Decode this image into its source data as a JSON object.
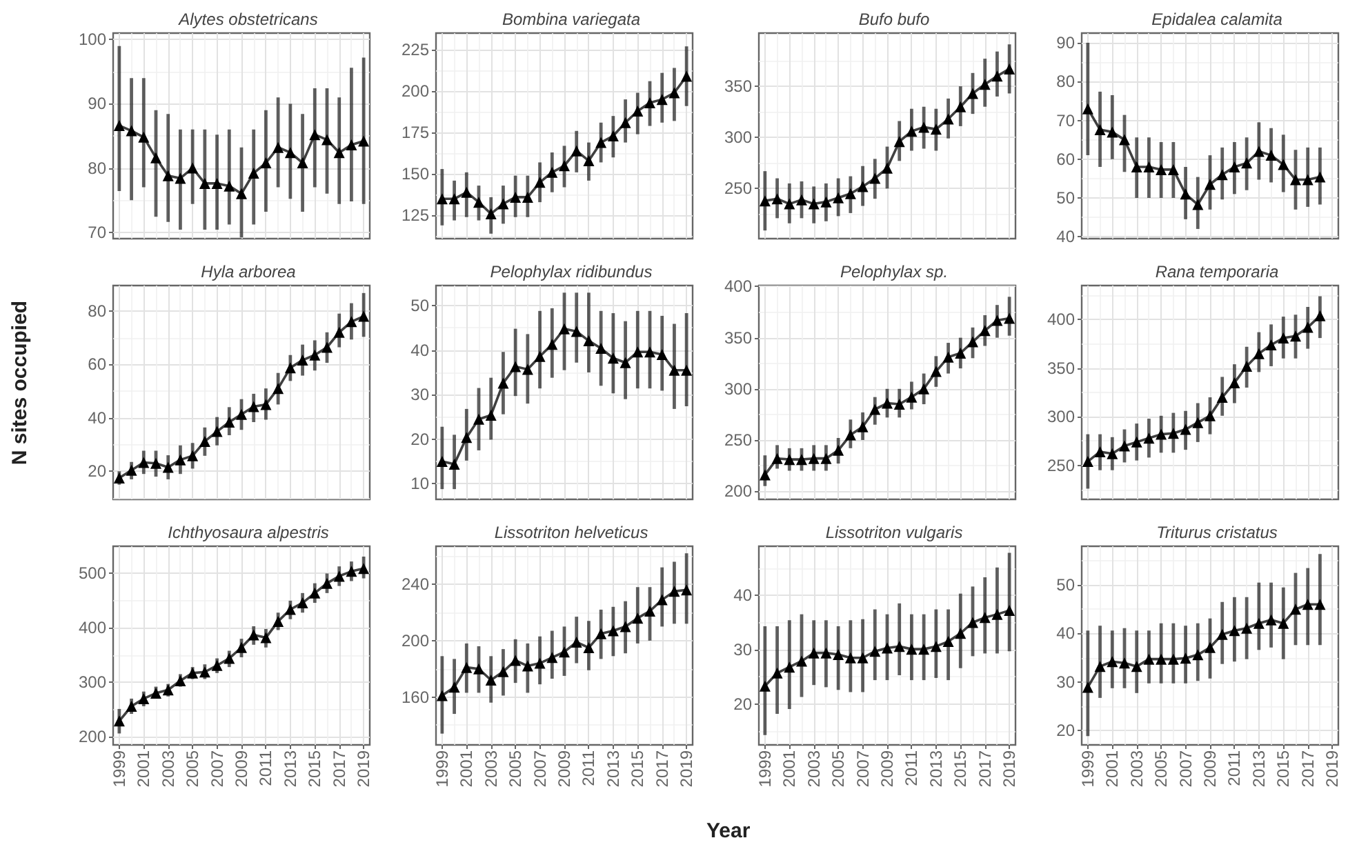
{
  "chart_data": [
    {
      "type": "line",
      "title": "Alytes obstetricans",
      "color": "#000000",
      "marker": "triangle",
      "line_style": "solid",
      "grid": true,
      "tick_labels": "y",
      "xlim": [
        1998.5,
        2019.5
      ],
      "xticks": [
        1999,
        2001,
        2003,
        2005,
        2007,
        2009,
        2011,
        2013,
        2015,
        2017,
        2019
      ],
      "ylim": [
        69,
        101
      ],
      "yticks": [
        70,
        80,
        90,
        100
      ],
      "x": [
        1999,
        2000,
        2001,
        2002,
        2003,
        2004,
        2005,
        2006,
        2007,
        2008,
        2009,
        2010,
        2011,
        2012,
        2013,
        2014,
        2015,
        2016,
        2017,
        2018,
        2019
      ],
      "values": [
        86.6,
        85.8,
        84.8,
        81.6,
        78.8,
        78.4,
        80,
        77.6,
        77.6,
        77.2,
        76,
        79.2,
        80.8,
        83.2,
        82.4,
        80.8,
        85.2,
        84.4,
        82.4,
        83.6,
        84.2
      ],
      "errors": [
        [
          76.4,
          99
        ],
        [
          75,
          94
        ],
        [
          77,
          94
        ],
        [
          72.4,
          89
        ],
        [
          71.6,
          88.4
        ],
        [
          70.4,
          86
        ],
        [
          74.4,
          86
        ],
        [
          70.4,
          86
        ],
        [
          70.4,
          85.2
        ],
        [
          71.2,
          86
        ],
        [
          69.2,
          83.2
        ],
        [
          71.2,
          86
        ],
        [
          73.2,
          89
        ],
        [
          77,
          91
        ],
        [
          75.2,
          90
        ],
        [
          73.2,
          88.4
        ],
        [
          77,
          92.4
        ],
        [
          76,
          92.4
        ],
        [
          74.4,
          91
        ],
        [
          74.8,
          95.6
        ],
        [
          74.4,
          97.2
        ]
      ]
    },
    {
      "type": "line",
      "title": "Bombina variegata",
      "color": "#000000",
      "marker": "triangle",
      "line_style": "solid",
      "grid": true,
      "tick_labels": "y",
      "xlim": [
        1998.5,
        2019.5
      ],
      "xticks": [
        1999,
        2001,
        2003,
        2005,
        2007,
        2009,
        2011,
        2013,
        2015,
        2017,
        2019
      ],
      "ylim": [
        111,
        235
      ],
      "yticks": [
        125,
        150,
        175,
        200,
        225
      ],
      "x": [
        1999,
        2000,
        2001,
        2002,
        2003,
        2004,
        2005,
        2006,
        2007,
        2008,
        2009,
        2010,
        2011,
        2012,
        2013,
        2014,
        2015,
        2016,
        2017,
        2018,
        2019
      ],
      "values": [
        135,
        135,
        139,
        133,
        126,
        132,
        136,
        136,
        145,
        151,
        155,
        164,
        158,
        169,
        173,
        181,
        188,
        193,
        195,
        199,
        209
      ],
      "errors": [
        [
          119,
          153
        ],
        [
          122,
          146
        ],
        [
          124,
          151
        ],
        [
          122,
          143
        ],
        [
          114,
          136
        ],
        [
          120,
          143
        ],
        [
          124,
          149
        ],
        [
          124,
          149
        ],
        [
          133,
          157
        ],
        [
          139,
          163
        ],
        [
          142,
          167
        ],
        [
          151,
          176
        ],
        [
          146,
          169
        ],
        [
          157,
          181
        ],
        [
          160,
          185
        ],
        [
          169,
          195
        ],
        [
          174,
          199
        ],
        [
          179,
          206
        ],
        [
          181,
          211
        ],
        [
          182,
          214
        ],
        [
          191,
          227
        ]
      ]
    },
    {
      "type": "line",
      "title": "Bufo bufo",
      "color": "#000000",
      "marker": "triangle",
      "line_style": "solid",
      "grid": true,
      "tick_labels": "y",
      "xlim": [
        1998.5,
        2019.5
      ],
      "xticks": [
        1999,
        2001,
        2003,
        2005,
        2007,
        2009,
        2011,
        2013,
        2015,
        2017,
        2019
      ],
      "ylim": [
        201,
        402
      ],
      "yticks": [
        250,
        300,
        350
      ],
      "x": [
        1999,
        2000,
        2001,
        2002,
        2003,
        2004,
        2005,
        2006,
        2007,
        2008,
        2009,
        2010,
        2011,
        2012,
        2013,
        2014,
        2015,
        2016,
        2017,
        2018,
        2019
      ],
      "values": [
        238,
        240,
        235,
        239,
        235,
        237,
        241,
        245,
        252,
        260,
        270,
        296,
        306,
        310,
        308,
        318,
        330,
        343,
        352,
        360,
        367
      ],
      "errors": [
        [
          209,
          267
        ],
        [
          221,
          260
        ],
        [
          216,
          255
        ],
        [
          221,
          257
        ],
        [
          216,
          252
        ],
        [
          218,
          255
        ],
        [
          223,
          260
        ],
        [
          226,
          262
        ],
        [
          233,
          272
        ],
        [
          240,
          279
        ],
        [
          250,
          291
        ],
        [
          277,
          316
        ],
        [
          287,
          328
        ],
        [
          289,
          330
        ],
        [
          287,
          328
        ],
        [
          299,
          338
        ],
        [
          311,
          350
        ],
        [
          323,
          363
        ],
        [
          330,
          377
        ],
        [
          340,
          384
        ],
        [
          343,
          391
        ]
      ]
    },
    {
      "type": "line",
      "title": "Epidalea calamita",
      "color": "#000000",
      "marker": "triangle",
      "line_style": "solid",
      "grid": true,
      "tick_labels": "y",
      "xlim": [
        1998.5,
        2019.5
      ],
      "xticks": [
        1999,
        2001,
        2003,
        2005,
        2007,
        2009,
        2011,
        2013,
        2015,
        2017,
        2019
      ],
      "ylim": [
        39.5,
        92.5
      ],
      "yticks": [
        40,
        50,
        60,
        70,
        80,
        90
      ],
      "x": [
        1999,
        2000,
        2001,
        2002,
        2003,
        2004,
        2005,
        2006,
        2007,
        2008,
        2009,
        2010,
        2011,
        2012,
        2013,
        2014,
        2015,
        2016,
        2017,
        2018
      ],
      "values": [
        73,
        67.6,
        67,
        65,
        58,
        58,
        57.3,
        57.3,
        51,
        48.3,
        53.5,
        56,
        58,
        59,
        62,
        61,
        58.6,
        54.7,
        54.7,
        55.4
      ],
      "errors": [
        [
          61,
          90
        ],
        [
          58,
          77.4
        ],
        [
          60,
          76.5
        ],
        [
          56.7,
          71.4
        ],
        [
          50,
          65.6
        ],
        [
          50,
          65.6
        ],
        [
          50,
          64.4
        ],
        [
          50,
          64.4
        ],
        [
          44.5,
          58
        ],
        [
          42,
          55.4
        ],
        [
          47,
          61
        ],
        [
          49.6,
          63
        ],
        [
          51,
          64.4
        ],
        [
          52,
          65.6
        ],
        [
          54.7,
          69.5
        ],
        [
          54,
          68
        ],
        [
          51.5,
          66.3
        ],
        [
          47,
          62.4
        ],
        [
          47.7,
          63
        ],
        [
          48.3,
          63
        ]
      ]
    },
    {
      "type": "line",
      "title": "Hyla arborea",
      "ylabel": "N sites occupied",
      "color": "#000000",
      "marker": "triangle",
      "line_style": "solid",
      "grid": true,
      "tick_labels": "y",
      "xlim": [
        1998.5,
        2019.5
      ],
      "xticks": [
        1999,
        2001,
        2003,
        2005,
        2007,
        2009,
        2011,
        2013,
        2015,
        2017,
        2019
      ],
      "ylim": [
        9.5,
        89.5
      ],
      "yticks": [
        20,
        40,
        60,
        80
      ],
      "x": [
        1999,
        2000,
        2001,
        2002,
        2003,
        2004,
        2005,
        2006,
        2007,
        2008,
        2009,
        2010,
        2011,
        2012,
        2013,
        2014,
        2015,
        2016,
        2017,
        2018,
        2019
      ],
      "values": [
        17.5,
        20.4,
        23.3,
        23,
        21.5,
        24.3,
        25.8,
        31.2,
        34.9,
        38.4,
        41.3,
        44.2,
        45,
        51,
        58.7,
        61.6,
        63.5,
        66.4,
        72,
        76,
        78
      ],
      "errors": [
        [
          15,
          20
        ],
        [
          17,
          23.5
        ],
        [
          19,
          27.7
        ],
        [
          18,
          27.7
        ],
        [
          17,
          26
        ],
        [
          19,
          29.7
        ],
        [
          21,
          30.6
        ],
        [
          25.8,
          36.4
        ],
        [
          29.7,
          40.3
        ],
        [
          33.5,
          44
        ],
        [
          35.5,
          47
        ],
        [
          38.4,
          49
        ],
        [
          39.3,
          51
        ],
        [
          45,
          56.8
        ],
        [
          53.8,
          63.5
        ],
        [
          55.8,
          67.4
        ],
        [
          57.7,
          69
        ],
        [
          60.6,
          72
        ],
        [
          66.4,
          79
        ],
        [
          69.3,
          82.9
        ],
        [
          70.3,
          86.7
        ]
      ]
    },
    {
      "type": "line",
      "title": "Pelophylax ridibundus",
      "color": "#000000",
      "marker": "triangle",
      "line_style": "solid",
      "grid": true,
      "tick_labels": "y",
      "xlim": [
        1998.5,
        2019.5
      ],
      "xticks": [
        1999,
        2001,
        2003,
        2005,
        2007,
        2009,
        2011,
        2013,
        2015,
        2017,
        2019
      ],
      "ylim": [
        6.5,
        54.5
      ],
      "yticks": [
        10,
        20,
        30,
        40,
        50
      ],
      "x": [
        1999,
        2000,
        2001,
        2002,
        2003,
        2004,
        2005,
        2006,
        2007,
        2008,
        2009,
        2010,
        2011,
        2012,
        2013,
        2014,
        2015,
        2016,
        2017,
        2018,
        2019
      ],
      "values": [
        15,
        14.4,
        20.4,
        24.5,
        25.4,
        32.6,
        36.3,
        35.7,
        38.6,
        41.3,
        44.8,
        44.2,
        42.1,
        40.4,
        38.2,
        37.2,
        39.6,
        39.6,
        39,
        35.5,
        35.5
      ],
      "errors": [
        [
          8.8,
          22.8
        ],
        [
          8.8,
          21
        ],
        [
          15.2,
          26.8
        ],
        [
          17.5,
          31.5
        ],
        [
          19.9,
          33.8
        ],
        [
          25.6,
          39.6
        ],
        [
          29.7,
          44.8
        ],
        [
          28,
          43.6
        ],
        [
          31.4,
          48.8
        ],
        [
          33.8,
          49.4
        ],
        [
          35.5,
          52.9
        ],
        [
          37.2,
          52.9
        ],
        [
          35,
          52.9
        ],
        [
          32,
          48.8
        ],
        [
          30.3,
          48.3
        ],
        [
          29,
          46.5
        ],
        [
          31.4,
          48.8
        ],
        [
          31.4,
          48.8
        ],
        [
          30.9,
          47.7
        ],
        [
          26.8,
          45.9
        ],
        [
          27.4,
          48.3
        ]
      ]
    },
    {
      "type": "line",
      "title": "Pelophylax sp.",
      "color": "#000000",
      "marker": "triangle",
      "line_style": "solid",
      "grid": true,
      "tick_labels": "y",
      "xlim": [
        1998.5,
        2019.5
      ],
      "xticks": [
        1999,
        2001,
        2003,
        2005,
        2007,
        2009,
        2011,
        2013,
        2015,
        2017,
        2019
      ],
      "ylim": [
        192,
        401
      ],
      "yticks": [
        200,
        250,
        300,
        350,
        400
      ],
      "x": [
        1999,
        2000,
        2001,
        2002,
        2003,
        2004,
        2005,
        2006,
        2007,
        2008,
        2009,
        2010,
        2011,
        2012,
        2013,
        2014,
        2015,
        2016,
        2017,
        2018,
        2019
      ],
      "values": [
        216,
        232,
        231,
        231,
        232,
        232,
        240,
        255,
        263,
        280,
        286,
        285,
        292,
        300,
        317,
        331,
        335,
        346,
        357,
        367,
        369
      ],
      "errors": [
        [
          205,
          235
        ],
        [
          222,
          245
        ],
        [
          220,
          242
        ],
        [
          220,
          242
        ],
        [
          220,
          245
        ],
        [
          220,
          245
        ],
        [
          227,
          252
        ],
        [
          242,
          270
        ],
        [
          250,
          277
        ],
        [
          265,
          292
        ],
        [
          272,
          300
        ],
        [
          272,
          300
        ],
        [
          280,
          307
        ],
        [
          285,
          315
        ],
        [
          302,
          332
        ],
        [
          315,
          345
        ],
        [
          320,
          350
        ],
        [
          330,
          360
        ],
        [
          342,
          372
        ],
        [
          350,
          382
        ],
        [
          352,
          390
        ]
      ]
    },
    {
      "type": "line",
      "title": "Rana temporaria",
      "color": "#000000",
      "marker": "triangle",
      "line_style": "solid",
      "grid": true,
      "tick_labels": "y",
      "xlim": [
        1998.5,
        2019.5
      ],
      "xticks": [
        1999,
        2001,
        2003,
        2005,
        2007,
        2009,
        2011,
        2013,
        2015,
        2017,
        2019
      ],
      "ylim": [
        215,
        435
      ],
      "yticks": [
        250,
        300,
        350,
        400
      ],
      "x": [
        1999,
        2000,
        2001,
        2002,
        2003,
        2004,
        2005,
        2006,
        2007,
        2008,
        2009,
        2010,
        2011,
        2012,
        2013,
        2014,
        2015,
        2016,
        2017,
        2018
      ],
      "values": [
        254,
        264,
        262,
        270,
        274,
        278,
        282,
        283,
        287,
        294,
        301,
        320,
        335,
        352,
        365,
        374,
        381,
        383,
        392,
        404
      ],
      "errors": [
        [
          226,
          282
        ],
        [
          245,
          282
        ],
        [
          245,
          279
        ],
        [
          253,
          287
        ],
        [
          255,
          293
        ],
        [
          258,
          298
        ],
        [
          263,
          301
        ],
        [
          263,
          304
        ],
        [
          266,
          306
        ],
        [
          274,
          314
        ],
        [
          282,
          320
        ],
        [
          301,
          341
        ],
        [
          314,
          354
        ],
        [
          330,
          372
        ],
        [
          346,
          387
        ],
        [
          352,
          395
        ],
        [
          360,
          403
        ],
        [
          360,
          405
        ],
        [
          370,
          413
        ],
        [
          381,
          424
        ]
      ]
    },
    {
      "type": "line",
      "title": "Ichthyosaura alpestris",
      "color": "#000000",
      "marker": "triangle",
      "line_style": "solid",
      "grid": true,
      "xlim": [
        1998.5,
        2019.5
      ],
      "xticks": [
        1999,
        2001,
        2003,
        2005,
        2007,
        2009,
        2011,
        2013,
        2015,
        2017,
        2019
      ],
      "ylim": [
        185,
        550
      ],
      "yticks": [
        200,
        300,
        400,
        500
      ],
      "x": [
        1999,
        2000,
        2001,
        2002,
        2003,
        2004,
        2005,
        2006,
        2007,
        2008,
        2009,
        2010,
        2011,
        2012,
        2013,
        2014,
        2015,
        2016,
        2017,
        2018,
        2019
      ],
      "values": [
        229,
        256,
        270,
        280,
        286,
        303,
        317,
        319,
        331,
        344,
        364,
        387,
        382,
        412,
        434,
        446,
        464,
        482,
        495,
        504,
        509
      ],
      "errors": [
        [
          206,
          251
        ],
        [
          242,
          270
        ],
        [
          256,
          283
        ],
        [
          270,
          292
        ],
        [
          274,
          297
        ],
        [
          292,
          315
        ],
        [
          306,
          328
        ],
        [
          306,
          333
        ],
        [
          317,
          344
        ],
        [
          328,
          358
        ],
        [
          346,
          380
        ],
        [
          369,
          403
        ],
        [
          364,
          398
        ],
        [
          396,
          428
        ],
        [
          416,
          450
        ],
        [
          428,
          464
        ],
        [
          446,
          482
        ],
        [
          464,
          500
        ],
        [
          477,
          513
        ],
        [
          486,
          522
        ],
        [
          491,
          531
        ]
      ]
    },
    {
      "type": "line",
      "title": "Lissotriton helveticus",
      "xlabel": "Year",
      "color": "#000000",
      "marker": "triangle",
      "line_style": "solid",
      "grid": true,
      "xlim": [
        1998.5,
        2019.5
      ],
      "xticks": [
        1999,
        2001,
        2003,
        2005,
        2007,
        2009,
        2011,
        2013,
        2015,
        2017,
        2019
      ],
      "ylim": [
        126,
        267
      ],
      "yticks": [
        160,
        200,
        240
      ],
      "x": [
        1999,
        2000,
        2001,
        2002,
        2003,
        2004,
        2005,
        2006,
        2007,
        2008,
        2009,
        2010,
        2011,
        2012,
        2013,
        2014,
        2015,
        2016,
        2017,
        2018,
        2019
      ],
      "values": [
        161,
        167,
        181,
        180,
        172,
        178,
        186,
        182,
        184,
        188,
        192,
        199,
        195,
        205,
        207,
        210,
        216,
        221,
        229,
        235,
        236
      ],
      "errors": [
        [
          134,
          189
        ],
        [
          148,
          187
        ],
        [
          163,
          198
        ],
        [
          163,
          196
        ],
        [
          156,
          189
        ],
        [
          161,
          194
        ],
        [
          170,
          201
        ],
        [
          163,
          198
        ],
        [
          169,
          203
        ],
        [
          173,
          207
        ],
        [
          175,
          210
        ],
        [
          184,
          217
        ],
        [
          179,
          214
        ],
        [
          187,
          222
        ],
        [
          189,
          224
        ],
        [
          191,
          228
        ],
        [
          198,
          238
        ],
        [
          200,
          238
        ],
        [
          210,
          252
        ],
        [
          212,
          256
        ],
        [
          212,
          262
        ]
      ]
    },
    {
      "type": "line",
      "title": "Lissotriton vulgaris",
      "color": "#000000",
      "marker": "triangle",
      "line_style": "solid",
      "grid": true,
      "xlim": [
        1998.5,
        2019.5
      ],
      "xticks": [
        1999,
        2001,
        2003,
        2005,
        2007,
        2009,
        2011,
        2013,
        2015,
        2017,
        2019
      ],
      "ylim": [
        12.5,
        49
      ],
      "yticks": [
        20,
        30,
        40
      ],
      "x": [
        1999,
        2000,
        2001,
        2002,
        2003,
        2004,
        2005,
        2006,
        2007,
        2008,
        2009,
        2010,
        2011,
        2012,
        2013,
        2014,
        2015,
        2016,
        2017,
        2018,
        2019
      ],
      "values": [
        23.3,
        25.7,
        26.8,
        27.9,
        29.4,
        29.4,
        29.1,
        28.5,
        28.5,
        29.7,
        30.3,
        30.6,
        30.1,
        30.1,
        30.6,
        31.5,
        33,
        35,
        35.9,
        36.5,
        37.2
      ],
      "errors": [
        [
          14.3,
          34.3
        ],
        [
          18.2,
          34.3
        ],
        [
          19.1,
          35.4
        ],
        [
          21.3,
          36.5
        ],
        [
          23.5,
          35.4
        ],
        [
          23.1,
          35.4
        ],
        [
          22.6,
          34.3
        ],
        [
          22.2,
          35.4
        ],
        [
          22.2,
          35.6
        ],
        [
          24.4,
          37.4
        ],
        [
          24.4,
          36.5
        ],
        [
          25.3,
          38.5
        ],
        [
          24.4,
          36.5
        ],
        [
          24.4,
          36.5
        ],
        [
          24.8,
          37.4
        ],
        [
          24.4,
          37.4
        ],
        [
          26.6,
          40.3
        ],
        [
          28.8,
          41.6
        ],
        [
          29.3,
          43.3
        ],
        [
          29.3,
          45.1
        ],
        [
          29.7,
          47.8
        ]
      ]
    },
    {
      "type": "line",
      "title": "Triturus cristatus",
      "color": "#000000",
      "marker": "triangle",
      "line_style": "solid",
      "grid": true,
      "xlim": [
        1998.5,
        2019.5
      ],
      "xticks": [
        1999,
        2001,
        2003,
        2005,
        2007,
        2009,
        2011,
        2013,
        2015,
        2017,
        2019
      ],
      "ylim": [
        17,
        58
      ],
      "yticks": [
        20,
        30,
        40,
        50
      ],
      "x": [
        1999,
        2000,
        2001,
        2002,
        2003,
        2004,
        2005,
        2006,
        2007,
        2008,
        2009,
        2010,
        2011,
        2012,
        2013,
        2014,
        2015,
        2016,
        2017,
        2018
      ],
      "values": [
        28.9,
        33.2,
        34.2,
        33.9,
        33.2,
        34.7,
        34.7,
        34.7,
        34.9,
        35.6,
        37.1,
        39.8,
        40.6,
        41.1,
        42.1,
        42.8,
        42.1,
        45,
        46,
        46
      ],
      "errors": [
        [
          18.8,
          40.6
        ],
        [
          26.7,
          41.6
        ],
        [
          28.7,
          40.6
        ],
        [
          28.7,
          41.1
        ],
        [
          27.7,
          40.6
        ],
        [
          29.7,
          40.6
        ],
        [
          29.7,
          42.1
        ],
        [
          29.7,
          42.1
        ],
        [
          29.7,
          41.6
        ],
        [
          30.2,
          42.1
        ],
        [
          30.7,
          43.1
        ],
        [
          33.7,
          46.5
        ],
        [
          34.2,
          47.5
        ],
        [
          34.7,
          47.5
        ],
        [
          36.6,
          50.5
        ],
        [
          37.1,
          50.5
        ],
        [
          34.7,
          49.5
        ],
        [
          37.6,
          52.5
        ],
        [
          37.6,
          53.5
        ],
        [
          37.6,
          56.4
        ]
      ]
    }
  ]
}
